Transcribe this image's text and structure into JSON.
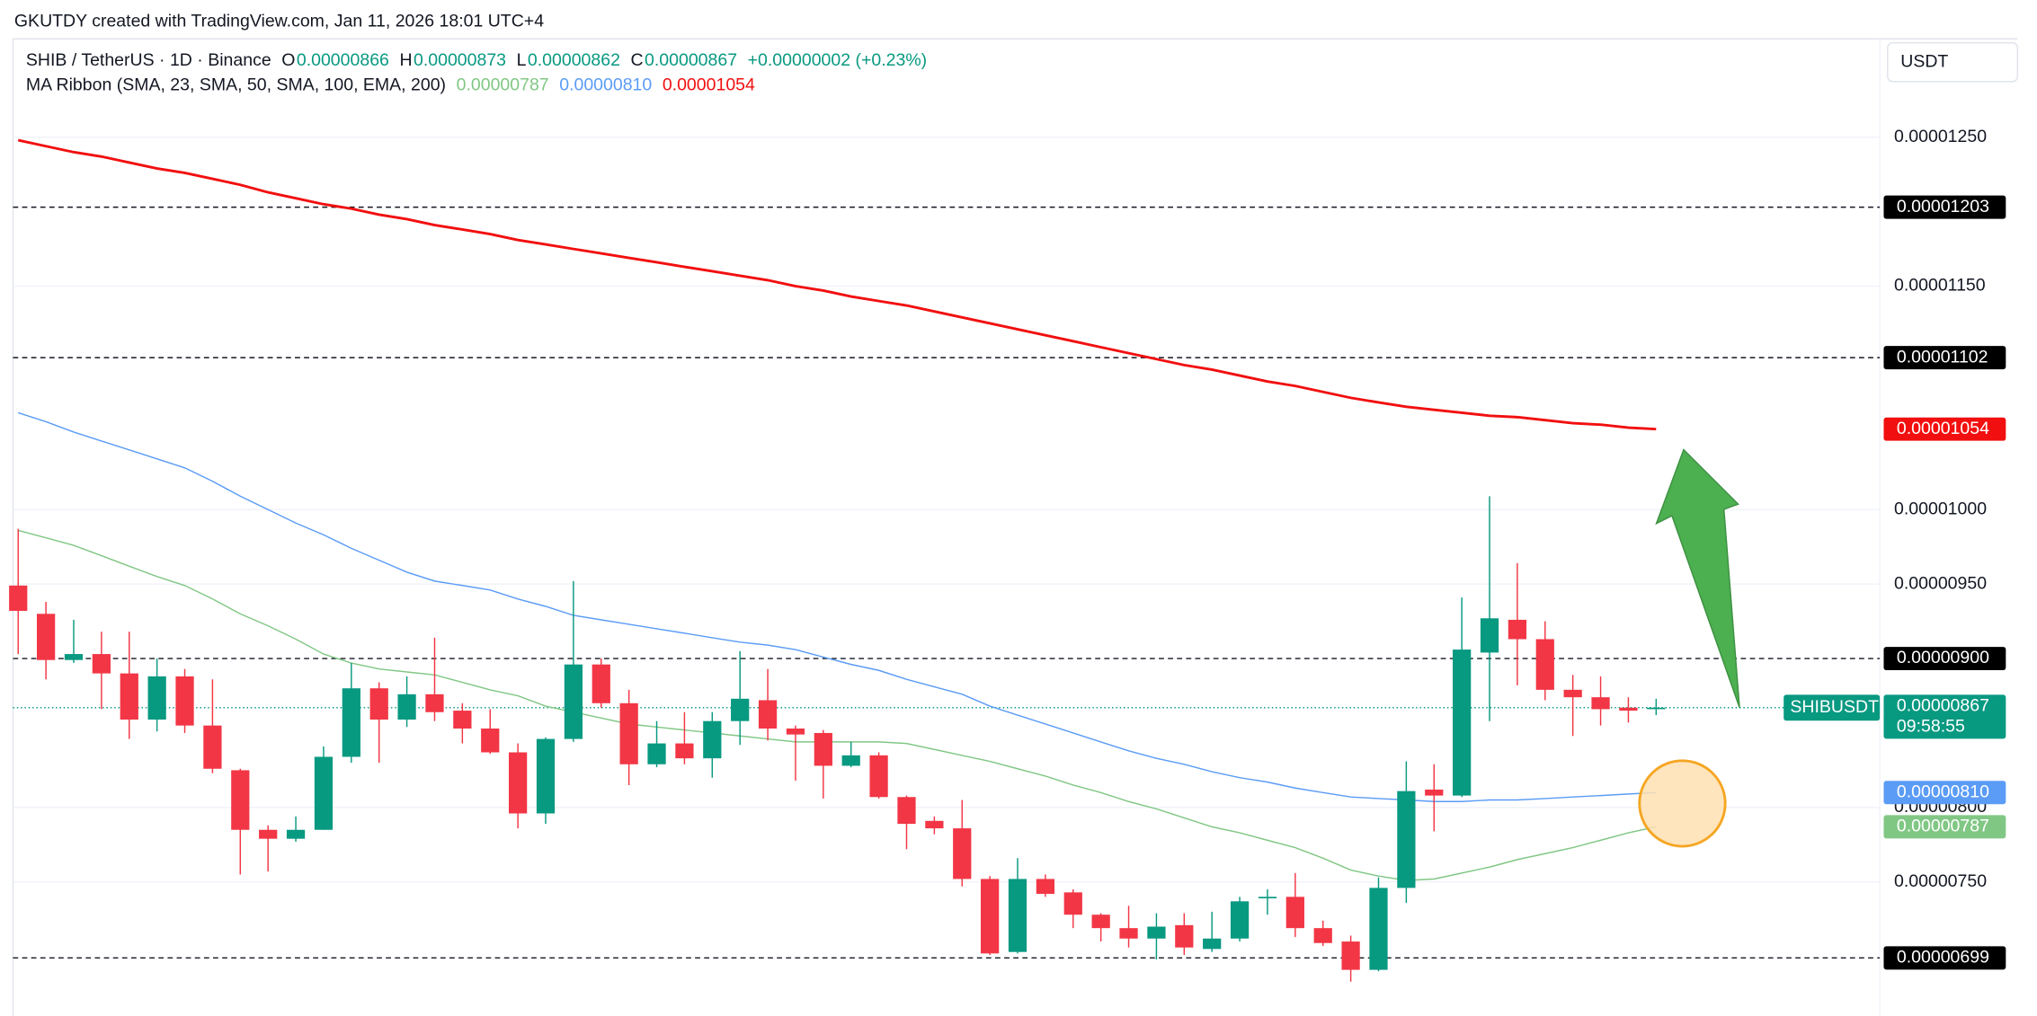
{
  "chart_data": {
    "type": "candlestick",
    "credit": "GKUTDY created with TradingView.com, Jan 11, 2026 18:01 UTC+4",
    "currency": "USDT",
    "symbol_title": "SHIB / TetherUS · 1D · Binance",
    "ohlc_legend": [
      {
        "key": "O",
        "text": "0.00000866"
      },
      {
        "key": "H",
        "text": "0.00000873"
      },
      {
        "key": "L",
        "text": "0.00000862"
      },
      {
        "key": "C",
        "text": "0.00000867"
      }
    ],
    "change": "+0.00000002 (+0.23%)",
    "indicator_title": "MA Ribbon (SMA, 23, SMA, 50, SMA, 100, EMA, 200)",
    "up_color": "#089981",
    "down_color": "#f23645",
    "open": [
      9.49e-06,
      9.3e-06,
      8.99e-06,
      9.03e-06,
      8.9e-06,
      8.59e-06,
      8.88e-06,
      8.55e-06,
      8.25e-06,
      7.85e-06,
      7.79e-06,
      7.85e-06,
      8.34e-06,
      8.8e-06,
      8.59e-06,
      8.76e-06,
      8.65e-06,
      8.53e-06,
      8.37e-06,
      7.96e-06,
      8.46e-06,
      8.96e-06,
      8.7e-06,
      8.29e-06,
      8.43e-06,
      8.33e-06,
      8.58e-06,
      8.72e-06,
      8.53e-06,
      8.5e-06,
      8.28e-06,
      8.35e-06,
      8.07e-06,
      7.91e-06,
      7.86e-06,
      7.52e-06,
      7.03e-06,
      7.52e-06,
      7.43e-06,
      7.28e-06,
      7.19e-06,
      7.12e-06,
      7.21e-06,
      7.05e-06,
      7.12e-06,
      7.39e-06,
      7.4e-06,
      7.19e-06,
      7.1e-06,
      6.91e-06,
      7.46e-06,
      8.12e-06,
      8.08e-06,
      9.04e-06,
      9.26e-06,
      9.13e-06,
      8.79e-06,
      8.74e-06,
      8.67e-06,
      8.66e-06
    ],
    "high": [
      9.87e-06,
      9.38e-06,
      9.26e-06,
      9.18e-06,
      9.18e-06,
      9e-06,
      8.93e-06,
      8.86e-06,
      8.26e-06,
      7.88e-06,
      7.94e-06,
      8.41e-06,
      8.97e-06,
      8.84e-06,
      8.88e-06,
      9.14e-06,
      8.7e-06,
      8.66e-06,
      8.43e-06,
      8.47e-06,
      9.52e-06,
      9e-06,
      8.79e-06,
      8.58e-06,
      8.64e-06,
      8.64e-06,
      9.05e-06,
      8.93e-06,
      8.55e-06,
      8.52e-06,
      8.44e-06,
      8.37e-06,
      8.08e-06,
      7.94e-06,
      8.05e-06,
      7.54e-06,
      7.66e-06,
      7.55e-06,
      7.45e-06,
      7.29e-06,
      7.34e-06,
      7.29e-06,
      7.29e-06,
      7.3e-06,
      7.4e-06,
      7.45e-06,
      7.56e-06,
      7.24e-06,
      7.14e-06,
      7.53e-06,
      8.31e-06,
      8.29e-06,
      9.41e-06,
      1.009e-05,
      9.64e-06,
      9.25e-06,
      8.89e-06,
      8.88e-06,
      8.74e-06,
      8.73e-06
    ],
    "low": [
      9.03e-06,
      8.86e-06,
      8.97e-06,
      8.66e-06,
      8.46e-06,
      8.51e-06,
      8.5e-06,
      8.23e-06,
      7.55e-06,
      7.57e-06,
      7.77e-06,
      7.85e-06,
      8.3e-06,
      8.3e-06,
      8.54e-06,
      8.58e-06,
      8.43e-06,
      8.36e-06,
      7.86e-06,
      7.89e-06,
      8.44e-06,
      8.67e-06,
      8.15e-06,
      8.27e-06,
      8.29e-06,
      8.2e-06,
      8.42e-06,
      8.45e-06,
      8.18e-06,
      8.06e-06,
      8.27e-06,
      8.06e-06,
      7.72e-06,
      7.82e-06,
      7.47e-06,
      7.01e-06,
      7.02e-06,
      7.4e-06,
      7.19e-06,
      7.1e-06,
      7.06e-06,
      6.98e-06,
      7.01e-06,
      7.03e-06,
      7.1e-06,
      7.28e-06,
      7.13e-06,
      7.07e-06,
      6.83e-06,
      6.9e-06,
      7.36e-06,
      7.84e-06,
      8.07e-06,
      8.58e-06,
      8.82e-06,
      8.72e-06,
      8.48e-06,
      8.55e-06,
      8.57e-06,
      8.62e-06
    ],
    "close": [
      9.32e-06,
      8.99e-06,
      9.03e-06,
      8.9e-06,
      8.59e-06,
      8.88e-06,
      8.55e-06,
      8.26e-06,
      7.85e-06,
      7.79e-06,
      7.85e-06,
      8.34e-06,
      8.8e-06,
      8.59e-06,
      8.76e-06,
      8.64e-06,
      8.53e-06,
      8.37e-06,
      7.96e-06,
      8.46e-06,
      8.96e-06,
      8.7e-06,
      8.29e-06,
      8.43e-06,
      8.33e-06,
      8.58e-06,
      8.73e-06,
      8.53e-06,
      8.49e-06,
      8.28e-06,
      8.35e-06,
      8.07e-06,
      7.89e-06,
      7.86e-06,
      7.52e-06,
      7.02e-06,
      7.52e-06,
      7.42e-06,
      7.28e-06,
      7.19e-06,
      7.12e-06,
      7.2e-06,
      7.06e-06,
      7.12e-06,
      7.37e-06,
      7.4e-06,
      7.19e-06,
      7.09e-06,
      6.91e-06,
      7.46e-06,
      8.11e-06,
      8.08e-06,
      9.06e-06,
      9.27e-06,
      9.13e-06,
      8.79e-06,
      8.74e-06,
      8.66e-06,
      8.65e-06,
      8.67e-06
    ],
    "series": [
      {
        "color": "#81c784",
        "last_label": "0.00000787",
        "values": [
          9.86e-06,
          9.81e-06,
          9.76e-06,
          9.69e-06,
          9.62e-06,
          9.55e-06,
          9.49e-06,
          9.4e-06,
          9.3e-06,
          9.22e-06,
          9.13e-06,
          9.03e-06,
          8.97e-06,
          8.93e-06,
          8.91e-06,
          8.89e-06,
          8.84e-06,
          8.79e-06,
          8.75e-06,
          8.68e-06,
          8.64e-06,
          8.6e-06,
          8.56e-06,
          8.54e-06,
          8.52e-06,
          8.5e-06,
          8.48e-06,
          8.46e-06,
          8.44e-06,
          8.44e-06,
          8.44e-06,
          8.44e-06,
          8.43e-06,
          8.39e-06,
          8.35e-06,
          8.31e-06,
          8.26e-06,
          8.21e-06,
          8.15e-06,
          8.1e-06,
          8.04e-06,
          7.99e-06,
          7.93e-06,
          7.87e-06,
          7.83e-06,
          7.78e-06,
          7.73e-06,
          7.66e-06,
          7.58e-06,
          7.54e-06,
          7.51e-06,
          7.52e-06,
          7.56e-06,
          7.6e-06,
          7.65e-06,
          7.69e-06,
          7.73e-06,
          7.78e-06,
          7.83e-06,
          7.87e-06
        ]
      },
      {
        "color": "#5b9cf6",
        "last_label": "0.00000810",
        "values": [
          1.065e-05,
          1.059e-05,
          1.052e-05,
          1.046e-05,
          1.04e-05,
          1.034e-05,
          1.028e-05,
          1.019e-05,
          1.009e-05,
          1e-05,
          9.91e-06,
          9.83e-06,
          9.74e-06,
          9.66e-06,
          9.58e-06,
          9.52e-06,
          9.49e-06,
          9.46e-06,
          9.4e-06,
          9.35e-06,
          9.29e-06,
          9.26e-06,
          9.23e-06,
          9.2e-06,
          9.17e-06,
          9.14e-06,
          9.11e-06,
          9.09e-06,
          9.06e-06,
          9.01e-06,
          8.96e-06,
          8.92e-06,
          8.86e-06,
          8.81e-06,
          8.76e-06,
          8.68e-06,
          8.62e-06,
          8.56e-06,
          8.5e-06,
          8.44e-06,
          8.38e-06,
          8.33e-06,
          8.29e-06,
          8.24e-06,
          8.2e-06,
          8.17e-06,
          8.13e-06,
          8.1e-06,
          8.07e-06,
          8.06e-06,
          8.05e-06,
          8.04e-06,
          8.04e-06,
          8.05e-06,
          8.05e-06,
          8.06e-06,
          8.07e-06,
          8.08e-06,
          8.09e-06,
          8.1e-06
        ]
      },
      {
        "color": "#f20f0f",
        "last_label": "0.00001054",
        "values": [
          1.248e-05,
          1.244e-05,
          1.24e-05,
          1.237e-05,
          1.233e-05,
          1.229e-05,
          1.226e-05,
          1.222e-05,
          1.218e-05,
          1.213e-05,
          1.209e-05,
          1.205e-05,
          1.202e-05,
          1.198e-05,
          1.195e-05,
          1.191e-05,
          1.188e-05,
          1.185e-05,
          1.181e-05,
          1.178e-05,
          1.175e-05,
          1.172e-05,
          1.169e-05,
          1.166e-05,
          1.163e-05,
          1.16e-05,
          1.157e-05,
          1.154e-05,
          1.15e-05,
          1.147e-05,
          1.143e-05,
          1.14e-05,
          1.137e-05,
          1.133e-05,
          1.129e-05,
          1.125e-05,
          1.121e-05,
          1.117e-05,
          1.113e-05,
          1.109e-05,
          1.105e-05,
          1.101e-05,
          1.097e-05,
          1.094e-05,
          1.09e-05,
          1.086e-05,
          1.083e-05,
          1.079e-05,
          1.075e-05,
          1.072e-05,
          1.069e-05,
          1.067e-05,
          1.065e-05,
          1.063e-05,
          1.062e-05,
          1.06e-05,
          1.058e-05,
          1.057e-05,
          1.055e-05,
          1.054e-05
        ]
      }
    ],
    "price_lines": [
      {
        "value": 1.203e-05,
        "label": "0.00001203"
      },
      {
        "value": 1.102e-05,
        "label": "0.00001102"
      },
      {
        "value": 9e-06,
        "label": "0.00000900"
      },
      {
        "value": 6.99e-06,
        "label": "0.00000699"
      }
    ],
    "last_price": {
      "value": 8.67e-06,
      "label": "0.00000867",
      "symbol": "SHIBUSDT",
      "countdown": "09:58:55"
    },
    "ylim": [
      6.6e-06,
      1.316e-05
    ],
    "yticks": [
      {
        "value": 1.25e-05,
        "label": "0.00001250"
      },
      {
        "value": 1.15e-05,
        "label": "0.00001150"
      },
      {
        "value": 1e-05,
        "label": "0.00001000"
      },
      {
        "value": 9.5e-06,
        "label": "0.00000950"
      },
      {
        "value": 8e-06,
        "label": "0.00000800"
      },
      {
        "value": 7.5e-06,
        "label": "0.00000750"
      }
    ],
    "grid": true
  }
}
